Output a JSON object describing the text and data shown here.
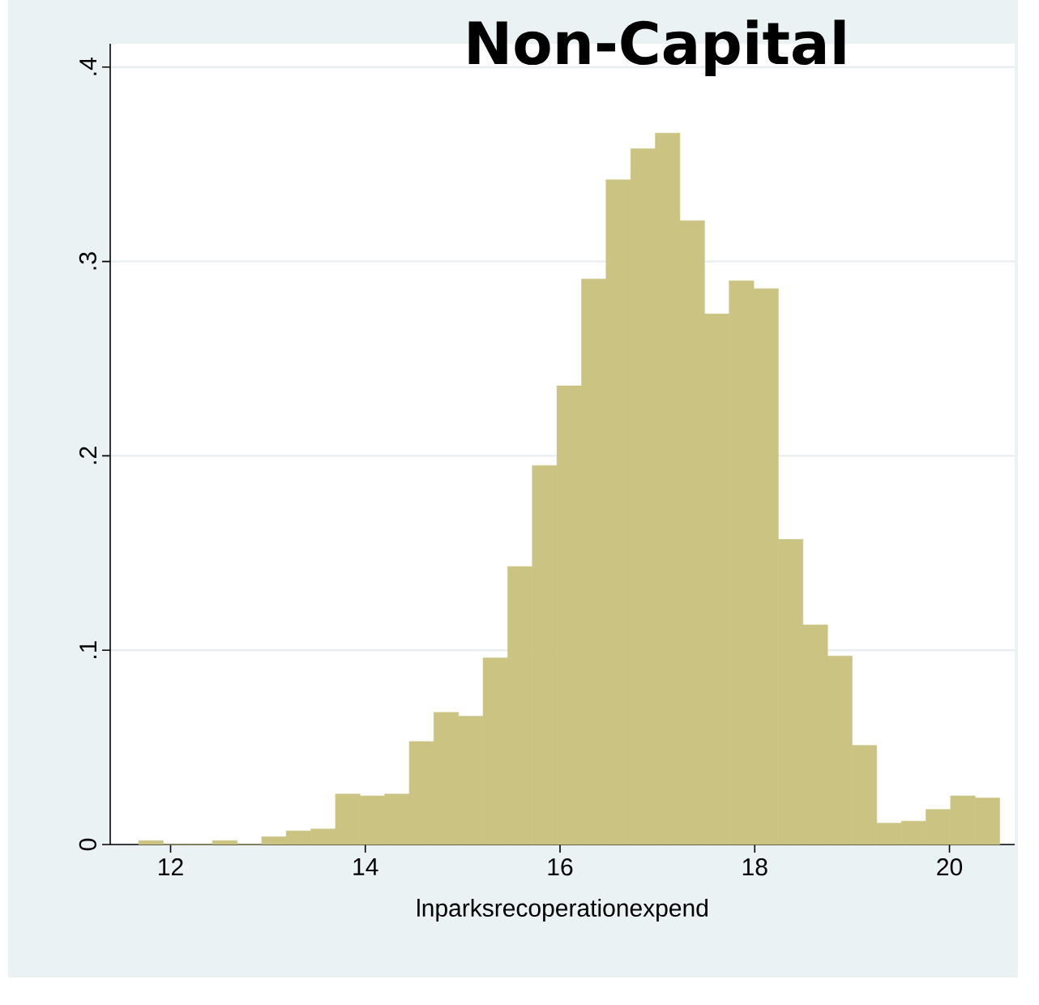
{
  "chart_data": {
    "type": "histogram",
    "title": "Non-Capital",
    "xlabel": "lnparksrecoperationexpend",
    "bins": [
      11.672,
      11.925,
      12.177,
      12.43,
      12.683,
      12.936,
      13.188,
      13.441,
      13.694,
      13.946,
      14.199,
      14.452,
      14.704,
      14.957,
      15.21,
      15.463,
      15.715,
      15.968,
      16.221,
      16.473,
      16.726,
      16.979,
      17.231,
      17.484,
      17.737,
      17.99,
      18.242,
      18.495,
      18.748,
      19.0,
      19.253,
      19.506,
      19.758,
      20.011,
      20.264,
      20.517
    ],
    "values": [
      0.002,
      0,
      0,
      0.002,
      0,
      0.004,
      0.007,
      0.008,
      0.026,
      0.025,
      0.026,
      0.053,
      0.068,
      0.066,
      0.096,
      0.143,
      0.195,
      0.236,
      0.291,
      0.342,
      0.358,
      0.366,
      0.321,
      0.273,
      0.29,
      0.286,
      0.157,
      0.113,
      0.097,
      0.051,
      0.011,
      0.012,
      0.018,
      0.025,
      0.024
    ],
    "color": "#cbc382",
    "xlim": [
      11.38,
      20.67
    ],
    "ylim": [
      0,
      0.412
    ],
    "xticks": [
      12,
      14,
      16,
      18,
      20
    ],
    "yticks": [
      0,
      {
        "value": 0.1,
        "label": ".1"
      },
      {
        "value": 0.2,
        "label": ".2"
      },
      {
        "value": 0.3,
        "label": ".3"
      },
      {
        "value": 0.4,
        "label": ".4"
      }
    ],
    "grid": "y"
  }
}
